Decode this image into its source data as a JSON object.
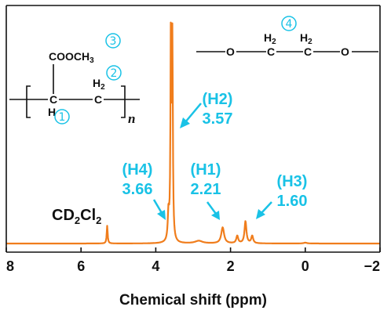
{
  "colors": {
    "spectrum": "#f07d1c",
    "annotation": "#19c2e6",
    "axis": "#111111"
  },
  "chart_data": {
    "type": "line",
    "xlabel": "Chemical shift (ppm)",
    "xlim": [
      8,
      -2
    ],
    "x_reversed": true,
    "grid": false,
    "x_ticks": [
      8,
      6,
      4,
      2,
      0,
      -2
    ],
    "x_tick_labels": [
      "8",
      "6",
      "4",
      "2",
      "0",
      "−2"
    ],
    "peaks": [
      {
        "ppm": 5.3,
        "height": 0.083,
        "width": 0.015
      },
      {
        "ppm": 3.66,
        "height": 0.128,
        "width": 0.022
      },
      {
        "ppm": 3.595,
        "height": 1.0,
        "width": 0.014
      },
      {
        "ppm": 3.555,
        "height": 0.92,
        "width": 0.014
      },
      {
        "ppm": 2.85,
        "height": 0.012,
        "width": 0.12
      },
      {
        "ppm": 2.21,
        "height": 0.075,
        "width": 0.045
      },
      {
        "ppm": 1.82,
        "height": 0.035,
        "width": 0.03
      },
      {
        "ppm": 1.6,
        "height": 0.104,
        "width": 0.03
      },
      {
        "ppm": 1.42,
        "height": 0.035,
        "width": 0.03
      },
      {
        "ppm": 0.0,
        "height": 0.004,
        "width": 0.05
      }
    ],
    "annotations": [
      {
        "label": "(H2)",
        "value": "3.57",
        "ppm": 3.57
      },
      {
        "label": "(H4)",
        "value": "3.66",
        "ppm": 3.66
      },
      {
        "label": "(H1)",
        "value": "2.21",
        "ppm": 2.21
      },
      {
        "label": "(H3)",
        "value": "1.60",
        "ppm": 1.6
      }
    ],
    "solvent_peak": {
      "ppm": 5.3,
      "label_prefix": "CD",
      "sub1": "2",
      "mid": "Cl",
      "sub2": "2"
    }
  },
  "structures": {
    "polymer": {
      "ester": "COOCH",
      "ester_sub": "3",
      "ch2": "H",
      "ch2_sub": "2",
      "c1": "C",
      "c2": "C",
      "h": "H",
      "repeat": "n",
      "markers": [
        "①",
        "②",
        "③"
      ]
    },
    "peo": {
      "o1": "O",
      "o2": "O",
      "c1": "C",
      "c2": "C",
      "h1": "H",
      "h1_sub": "2",
      "h2": "H",
      "h2_sub": "2",
      "marker": "④"
    }
  }
}
